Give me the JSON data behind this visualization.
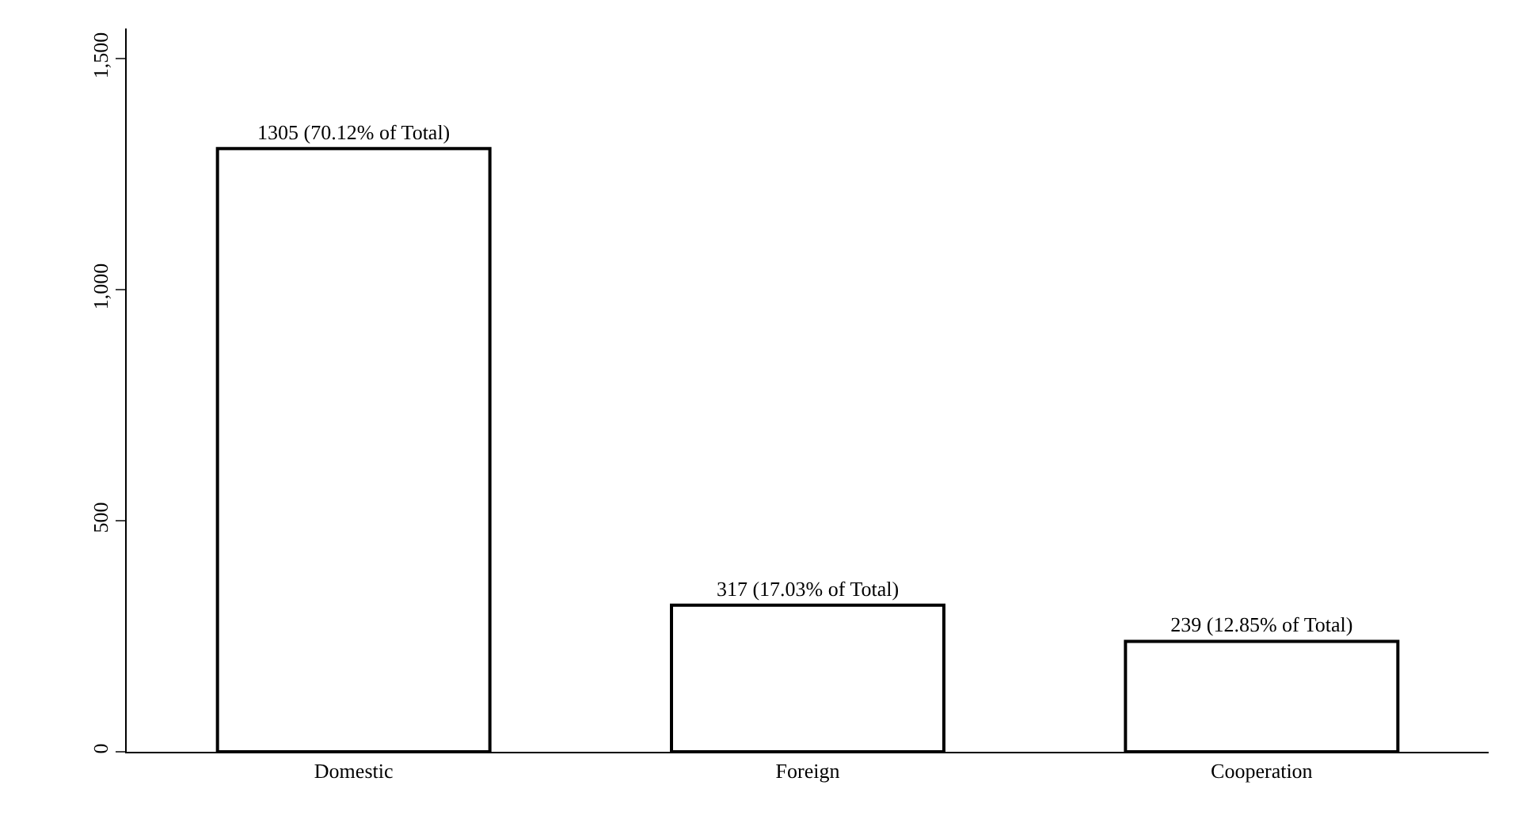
{
  "chart_data": {
    "type": "bar",
    "categories": [
      "Domestic",
      "Foreign",
      "Cooperation"
    ],
    "values": [
      1305,
      317,
      239
    ],
    "color": "#ffffff",
    "value_labels": [
      "1305 (70.12% of Total)",
      "317 (17.03% of Total)",
      "239 (12.85% of Total)"
    ],
    "ylim": [
      0,
      1565
    ],
    "yticks": [
      0,
      {
        "value": 500,
        "label": "500"
      },
      {
        "value": 1000,
        "label": "1,000"
      },
      {
        "value": 1500,
        "label": "1,500"
      }
    ],
    "legend": false
  }
}
